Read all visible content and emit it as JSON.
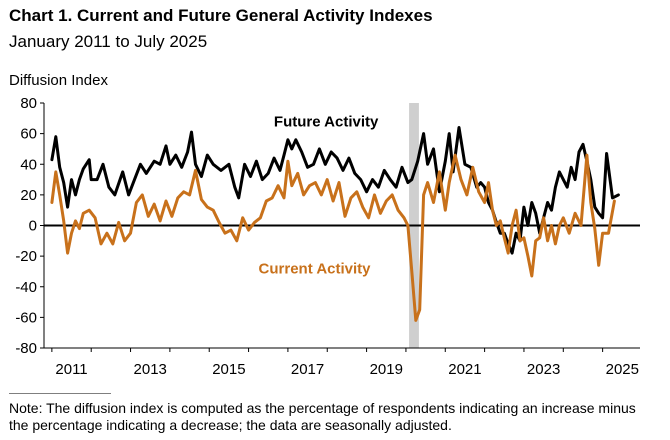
{
  "chart_data": {
    "type": "line",
    "title": "Chart 1. Current and Future General Activity Indexes",
    "subtitle": "January 2011 to July 2025",
    "ylabel": "Diffusion Index",
    "xlabel": "",
    "ylim": [
      -80,
      80
    ],
    "yticks": [
      80,
      60,
      40,
      20,
      0,
      -20,
      -40,
      -60,
      -80
    ],
    "xticks": [
      {
        "label": "2011",
        "t": 2011.0
      },
      {
        "label": "2013",
        "t": 2013.0
      },
      {
        "label": "2015",
        "t": 2015.0
      },
      {
        "label": "2017",
        "t": 2017.0
      },
      {
        "label": "2019",
        "t": 2019.0
      },
      {
        "label": "2021",
        "t": 2021.0
      },
      {
        "label": "2023",
        "t": 2023.0
      },
      {
        "label": "2025",
        "t": 2025.0
      }
    ],
    "x_range": [
      2010.8,
      2025.95
    ],
    "recession_band": [
      2020.08,
      2020.33
    ],
    "grid": false,
    "series": [
      {
        "name": "Future Activity",
        "color": "#000000",
        "label_anchor": [
          2019.3,
          68
        ],
        "points": [
          [
            2011.0,
            43
          ],
          [
            2011.1,
            58
          ],
          [
            2011.2,
            38
          ],
          [
            2011.3,
            28
          ],
          [
            2011.4,
            12
          ],
          [
            2011.5,
            30
          ],
          [
            2011.6,
            20
          ],
          [
            2011.7,
            30
          ],
          [
            2011.8,
            37
          ],
          [
            2011.95,
            43
          ],
          [
            2012.0,
            30
          ],
          [
            2012.15,
            30
          ],
          [
            2012.3,
            40
          ],
          [
            2012.45,
            25
          ],
          [
            2012.6,
            20
          ],
          [
            2012.8,
            35
          ],
          [
            2012.95,
            20
          ],
          [
            2013.1,
            30
          ],
          [
            2013.25,
            40
          ],
          [
            2013.4,
            34
          ],
          [
            2013.6,
            42
          ],
          [
            2013.75,
            40
          ],
          [
            2013.9,
            52
          ],
          [
            2014.0,
            40
          ],
          [
            2014.15,
            46
          ],
          [
            2014.3,
            38
          ],
          [
            2014.45,
            48
          ],
          [
            2014.55,
            61
          ],
          [
            2014.65,
            40
          ],
          [
            2014.8,
            32
          ],
          [
            2014.95,
            46
          ],
          [
            2015.1,
            40
          ],
          [
            2015.3,
            36
          ],
          [
            2015.5,
            40
          ],
          [
            2015.65,
            25
          ],
          [
            2015.75,
            18
          ],
          [
            2015.9,
            40
          ],
          [
            2016.05,
            32
          ],
          [
            2016.2,
            42
          ],
          [
            2016.35,
            30
          ],
          [
            2016.5,
            34
          ],
          [
            2016.65,
            44
          ],
          [
            2016.8,
            36
          ],
          [
            2016.9,
            46
          ],
          [
            2017.0,
            56
          ],
          [
            2017.1,
            50
          ],
          [
            2017.2,
            56
          ],
          [
            2017.35,
            48
          ],
          [
            2017.5,
            38
          ],
          [
            2017.65,
            40
          ],
          [
            2017.8,
            50
          ],
          [
            2017.95,
            40
          ],
          [
            2018.1,
            48
          ],
          [
            2018.25,
            44
          ],
          [
            2018.4,
            36
          ],
          [
            2018.55,
            44
          ],
          [
            2018.7,
            34
          ],
          [
            2018.85,
            30
          ],
          [
            2019.0,
            22
          ],
          [
            2019.15,
            30
          ],
          [
            2019.3,
            25
          ],
          [
            2019.45,
            36
          ],
          [
            2019.6,
            30
          ],
          [
            2019.75,
            25
          ],
          [
            2019.9,
            38
          ],
          [
            2020.05,
            28
          ],
          [
            2020.15,
            30
          ],
          [
            2020.3,
            42
          ],
          [
            2020.45,
            60
          ],
          [
            2020.55,
            40
          ],
          [
            2020.7,
            50
          ],
          [
            2020.85,
            22
          ],
          [
            2021.0,
            42
          ],
          [
            2021.1,
            60
          ],
          [
            2021.2,
            35
          ],
          [
            2021.35,
            64
          ],
          [
            2021.5,
            40
          ],
          [
            2021.65,
            38
          ],
          [
            2021.8,
            25
          ],
          [
            2021.9,
            28
          ],
          [
            2022.0,
            25
          ],
          [
            2022.1,
            15
          ],
          [
            2022.2,
            10
          ],
          [
            2022.3,
            2
          ],
          [
            2022.4,
            -5
          ],
          [
            2022.5,
            -5
          ],
          [
            2022.6,
            -12
          ],
          [
            2022.7,
            -18
          ],
          [
            2022.8,
            -5
          ],
          [
            2022.9,
            -10
          ],
          [
            2023.0,
            12
          ],
          [
            2023.1,
            0
          ],
          [
            2023.2,
            15
          ],
          [
            2023.3,
            8
          ],
          [
            2023.4,
            -5
          ],
          [
            2023.5,
            5
          ],
          [
            2023.6,
            15
          ],
          [
            2023.7,
            10
          ],
          [
            2023.8,
            25
          ],
          [
            2023.9,
            35
          ],
          [
            2024.0,
            30
          ],
          [
            2024.1,
            25
          ],
          [
            2024.2,
            38
          ],
          [
            2024.3,
            30
          ],
          [
            2024.4,
            48
          ],
          [
            2024.5,
            53
          ],
          [
            2024.6,
            42
          ],
          [
            2024.7,
            30
          ],
          [
            2024.8,
            12
          ],
          [
            2024.9,
            8
          ],
          [
            2025.0,
            5
          ],
          [
            2025.1,
            47
          ],
          [
            2025.25,
            18
          ],
          [
            2025.4,
            20
          ]
        ]
      },
      {
        "name": "Current Activity",
        "color": "#c8711b",
        "label_anchor": [
          2019.1,
          -28
        ],
        "points": [
          [
            2011.0,
            15
          ],
          [
            2011.1,
            35
          ],
          [
            2011.2,
            20
          ],
          [
            2011.3,
            3
          ],
          [
            2011.4,
            -18
          ],
          [
            2011.5,
            -5
          ],
          [
            2011.6,
            3
          ],
          [
            2011.7,
            -2
          ],
          [
            2011.8,
            8
          ],
          [
            2011.95,
            10
          ],
          [
            2012.1,
            5
          ],
          [
            2012.25,
            -12
          ],
          [
            2012.4,
            -5
          ],
          [
            2012.55,
            -12
          ],
          [
            2012.7,
            2
          ],
          [
            2012.85,
            -10
          ],
          [
            2013.0,
            -5
          ],
          [
            2013.15,
            15
          ],
          [
            2013.3,
            20
          ],
          [
            2013.45,
            6
          ],
          [
            2013.6,
            14
          ],
          [
            2013.75,
            3
          ],
          [
            2013.9,
            16
          ],
          [
            2014.05,
            6
          ],
          [
            2014.2,
            18
          ],
          [
            2014.35,
            22
          ],
          [
            2014.5,
            20
          ],
          [
            2014.65,
            36
          ],
          [
            2014.8,
            17
          ],
          [
            2014.95,
            12
          ],
          [
            2015.1,
            10
          ],
          [
            2015.25,
            2
          ],
          [
            2015.4,
            -5
          ],
          [
            2015.55,
            -3
          ],
          [
            2015.7,
            -10
          ],
          [
            2015.85,
            5
          ],
          [
            2016.0,
            -3
          ],
          [
            2016.15,
            2
          ],
          [
            2016.3,
            5
          ],
          [
            2016.45,
            16
          ],
          [
            2016.6,
            18
          ],
          [
            2016.75,
            26
          ],
          [
            2016.9,
            18
          ],
          [
            2017.0,
            42
          ],
          [
            2017.1,
            26
          ],
          [
            2017.25,
            34
          ],
          [
            2017.4,
            20
          ],
          [
            2017.55,
            26
          ],
          [
            2017.7,
            28
          ],
          [
            2017.85,
            20
          ],
          [
            2018.0,
            30
          ],
          [
            2018.15,
            16
          ],
          [
            2018.3,
            28
          ],
          [
            2018.45,
            6
          ],
          [
            2018.6,
            18
          ],
          [
            2018.75,
            22
          ],
          [
            2018.9,
            12
          ],
          [
            2019.05,
            5
          ],
          [
            2019.2,
            20
          ],
          [
            2019.35,
            8
          ],
          [
            2019.5,
            16
          ],
          [
            2019.65,
            20
          ],
          [
            2019.8,
            10
          ],
          [
            2019.95,
            5
          ],
          [
            2020.05,
            0
          ],
          [
            2020.15,
            -30
          ],
          [
            2020.25,
            -62
          ],
          [
            2020.35,
            -55
          ],
          [
            2020.45,
            20
          ],
          [
            2020.55,
            28
          ],
          [
            2020.7,
            15
          ],
          [
            2020.85,
            35
          ],
          [
            2021.0,
            10
          ],
          [
            2021.1,
            28
          ],
          [
            2021.25,
            46
          ],
          [
            2021.4,
            30
          ],
          [
            2021.55,
            20
          ],
          [
            2021.7,
            38
          ],
          [
            2021.85,
            22
          ],
          [
            2022.0,
            15
          ],
          [
            2022.1,
            28
          ],
          [
            2022.2,
            10
          ],
          [
            2022.3,
            0
          ],
          [
            2022.4,
            3
          ],
          [
            2022.5,
            -8
          ],
          [
            2022.6,
            -18
          ],
          [
            2022.7,
            0
          ],
          [
            2022.8,
            10
          ],
          [
            2022.9,
            -10
          ],
          [
            2023.0,
            -8
          ],
          [
            2023.1,
            -20
          ],
          [
            2023.2,
            -33
          ],
          [
            2023.3,
            -10
          ],
          [
            2023.4,
            -8
          ],
          [
            2023.5,
            5
          ],
          [
            2023.6,
            -10
          ],
          [
            2023.7,
            0
          ],
          [
            2023.8,
            -12
          ],
          [
            2023.9,
            0
          ],
          [
            2024.0,
            5
          ],
          [
            2024.15,
            -5
          ],
          [
            2024.3,
            8
          ],
          [
            2024.45,
            0
          ],
          [
            2024.6,
            46
          ],
          [
            2024.7,
            15
          ],
          [
            2024.8,
            -2
          ],
          [
            2024.9,
            -26
          ],
          [
            2025.0,
            -5
          ],
          [
            2025.15,
            -5
          ],
          [
            2025.3,
            16
          ]
        ]
      }
    ]
  },
  "note": "Note: The diffusion index is computed as the percentage of respondents indicating an increase minus the percentage indicating a decrease; the data are seasonally adjusted."
}
